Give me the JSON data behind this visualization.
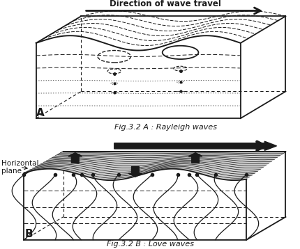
{
  "title_A": "Fig.3.2 A : Rayleigh waves",
  "title_B": "Fig.3.2 B : Love waves",
  "label_A": "A",
  "label_B": "B",
  "direction_label": "Direction of wave travel",
  "horiz_plane_label": "Horizontal\nplane",
  "line_color": "#1a1a1a",
  "text_color": "#1a1a1a",
  "fig_width": 4.31,
  "fig_height": 3.58,
  "dpi": 100
}
